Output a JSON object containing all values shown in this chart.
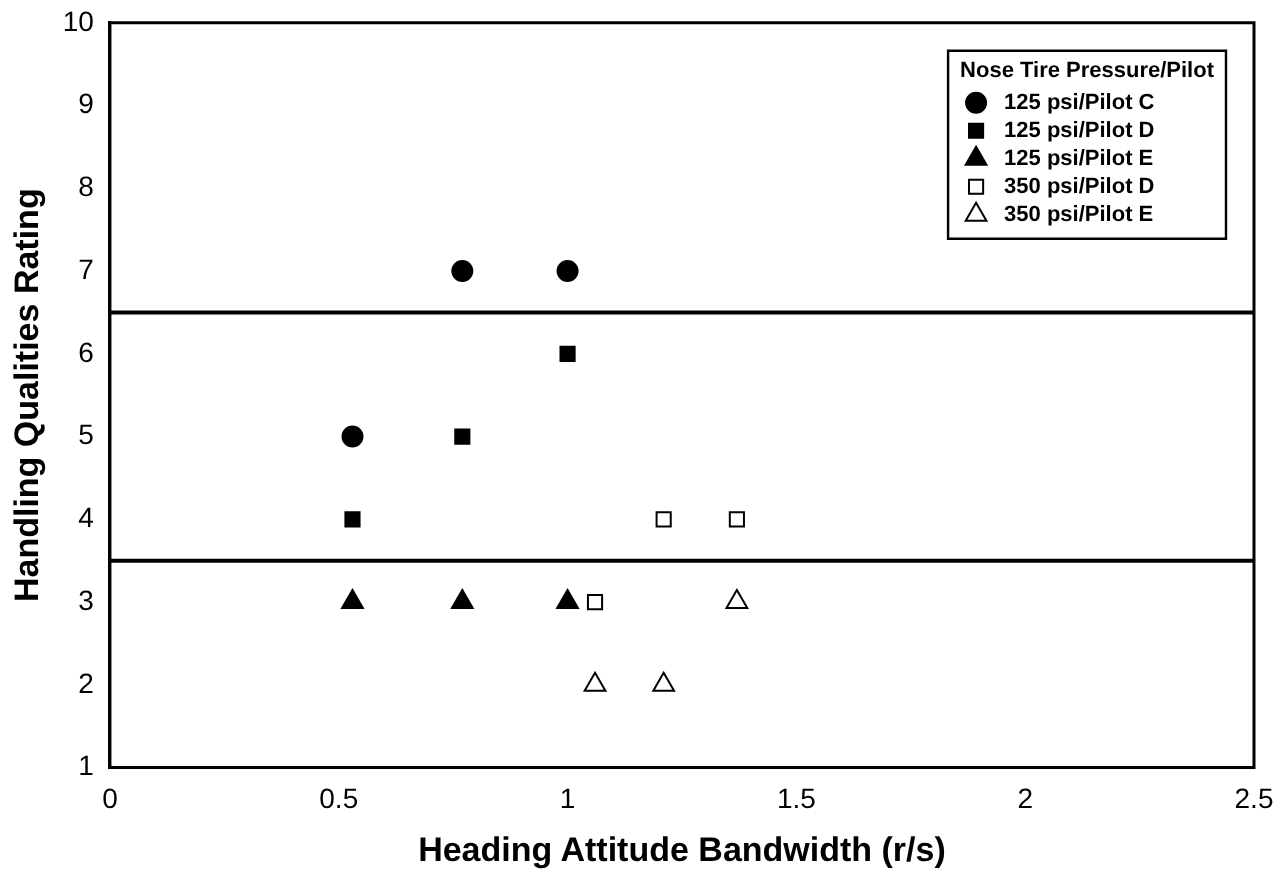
{
  "chart_data": {
    "type": "scatter",
    "xlabel": "Heading Attitude Bandwidth (r/s)",
    "ylabel": "Handling Qualities Rating",
    "legend_title": "Nose Tire Pressure/Pilot",
    "legend": "top right",
    "xlim": [
      0,
      2.5
    ],
    "xticks": [
      0,
      0.5,
      1,
      1.5,
      2,
      2.5
    ],
    "ylim": [
      1,
      10
    ],
    "yticks": [
      1,
      2,
      3,
      4,
      5,
      6,
      7,
      8,
      9,
      10
    ],
    "grid": false,
    "series": [
      {
        "name": "125 psi/Pilot C",
        "color": "#000000",
        "marker": "circle",
        "x": [
          0.53,
          0.77,
          1.0
        ],
        "values": [
          5,
          7,
          7
        ]
      },
      {
        "name": "125 psi/Pilot D",
        "color": "#000000",
        "marker": "square",
        "x": [
          0.53,
          0.77,
          1.0
        ],
        "values": [
          4,
          5,
          6
        ]
      },
      {
        "name": "125 psi/Pilot E",
        "color": "#000000",
        "marker": "triangle",
        "x": [
          0.53,
          0.77,
          1.0
        ],
        "values": [
          3,
          3,
          3
        ]
      },
      {
        "name": "350 psi/Pilot D",
        "color": "#ffffff",
        "marker": "square",
        "x": [
          1.06,
          1.21,
          1.37
        ],
        "values": [
          3,
          4,
          4
        ]
      },
      {
        "name": "350 psi/Pilot E",
        "color": "#ffffff",
        "marker": "triangle",
        "x": [
          1.06,
          1.21,
          1.37
        ],
        "values": [
          2,
          2,
          3
        ]
      }
    ],
    "ref_lines": [
      {
        "axis": "y",
        "value": 6.5,
        "color": "#000000"
      },
      {
        "axis": "y",
        "value": 3.5,
        "color": "#000000"
      }
    ]
  }
}
